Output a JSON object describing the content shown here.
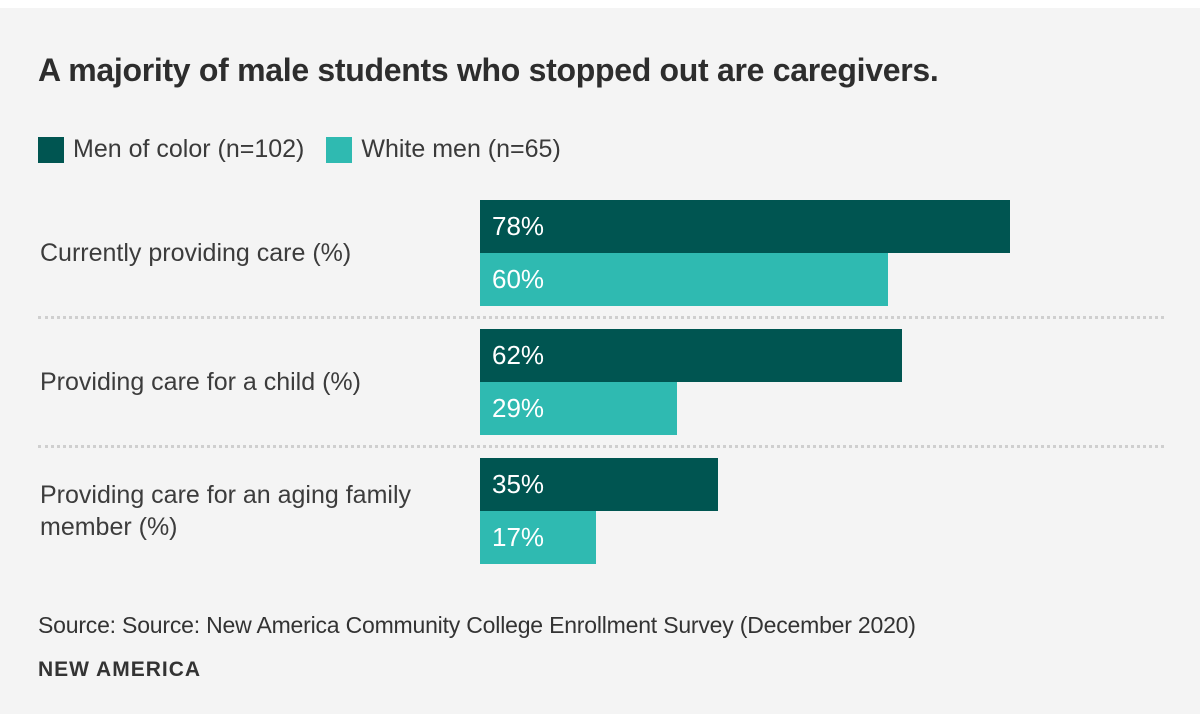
{
  "title": "A majority of male students who stopped out are caregivers.",
  "legend": [
    {
      "label": "Men of color (n=102)",
      "color": "#005551"
    },
    {
      "label": "White men (n=65)",
      "color": "#2fbab1"
    }
  ],
  "chart_data": {
    "type": "bar",
    "orientation": "horizontal",
    "title": "A majority of male students who stopped out are caregivers.",
    "xlim": [
      0,
      100
    ],
    "value_suffix": "%",
    "grid": false,
    "legend_position": "top-left",
    "categories": [
      "Currently providing care (%)",
      "Providing care for a child (%)",
      "Providing care for an aging family member (%)"
    ],
    "series": [
      {
        "name": "Men of color (n=102)",
        "color": "#005551",
        "values": [
          78,
          62,
          35
        ]
      },
      {
        "name": "White men (n=65)",
        "color": "#2fbab1",
        "values": [
          60,
          29,
          17
        ]
      }
    ]
  },
  "source": "Source: Source: New America Community College Enrollment Survey (December 2020)",
  "logo": "NEW AMERICA",
  "colors": {
    "background": "#f4f4f4",
    "dark_teal": "#005551",
    "light_teal": "#2fbab1",
    "text": "#333333",
    "separator": "#cfcfcf"
  }
}
